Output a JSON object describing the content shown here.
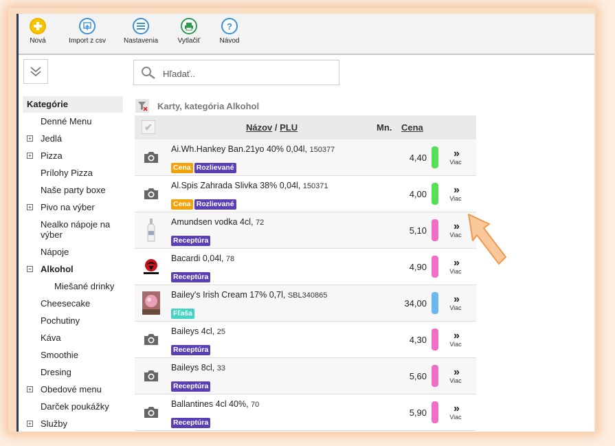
{
  "toolbar": {
    "items": [
      {
        "label": "Nová",
        "icon": "plus-icon"
      },
      {
        "label": "Import z csv",
        "icon": "import-icon"
      },
      {
        "label": "Nastavenia",
        "icon": "menu-icon"
      },
      {
        "label": "Vytlačiť",
        "icon": "printer-icon"
      },
      {
        "label": "Návod",
        "icon": "help-icon"
      }
    ]
  },
  "search": {
    "placeholder": "Hľadať.."
  },
  "sidebar": {
    "header": "Kategórie",
    "items": [
      {
        "label": "Denné Menu",
        "expand": ""
      },
      {
        "label": "Jedlá",
        "expand": "+"
      },
      {
        "label": "Pizza",
        "expand": "+"
      },
      {
        "label": "Prílohy Pizza",
        "expand": ""
      },
      {
        "label": "Naše party boxe",
        "expand": ""
      },
      {
        "label": "Pivo na výber",
        "expand": "+"
      },
      {
        "label": "Nealko nápoje na výber",
        "expand": ""
      },
      {
        "label": "Nápoje",
        "expand": ""
      },
      {
        "label": "Alkohol",
        "expand": "−"
      },
      {
        "label": "Miešané drinky",
        "expand": ""
      },
      {
        "label": "Cheesecake",
        "expand": ""
      },
      {
        "label": "Pochutiny",
        "expand": ""
      },
      {
        "label": "Káva",
        "expand": ""
      },
      {
        "label": "Smoothie",
        "expand": ""
      },
      {
        "label": "Dresing",
        "expand": ""
      },
      {
        "label": "Obedové menu",
        "expand": "+"
      },
      {
        "label": "Darček poukážky",
        "expand": ""
      },
      {
        "label": "Služby",
        "expand": "+"
      }
    ]
  },
  "main": {
    "title": "Karty, kategória Alkohol",
    "columns": {
      "name": "Názov",
      "slash": " / ",
      "plu": "PLU",
      "qty": "Mn.",
      "price": "Cena"
    },
    "more_label": "Viac",
    "more_chevron": "»",
    "products": [
      {
        "name": "Ai.Wh.Hankey Ban.21yo 40% 0,04l, ",
        "plu": "150377",
        "badges": [
          "Cena",
          "Rozlievané"
        ],
        "price": "4,40",
        "color": "#55e055",
        "thumb": "camera-icon"
      },
      {
        "name": "Al.Spis Zahrada Slivka 38% 0,04l, ",
        "plu": "150371",
        "badges": [
          "Cena",
          "Rozlievané"
        ],
        "price": "4,00",
        "color": "#55e055",
        "thumb": "camera-icon"
      },
      {
        "name": "Amundsen vodka 4cl, ",
        "plu": "72",
        "badges": [
          "Receptúra"
        ],
        "price": "5,10",
        "color": "#ee6fc5",
        "thumb": "vodka-bottle-image"
      },
      {
        "name": "Bacardi 0,04l, ",
        "plu": "78",
        "badges": [
          "Receptúra"
        ],
        "price": "4,90",
        "color": "#ee6fc5",
        "thumb": "bacardi-logo-image"
      },
      {
        "name": "Bailey's Irish Cream 17% 0,7l, ",
        "plu": "SBL340865",
        "badges": [
          "Fľaša"
        ],
        "price": "34,00",
        "color": "#6bb7f0",
        "thumb": "baileys-image"
      },
      {
        "name": "Baileys 4cl, ",
        "plu": "25",
        "badges": [
          "Receptúra"
        ],
        "price": "4,30",
        "color": "#ee6fc5",
        "thumb": "camera-icon"
      },
      {
        "name": "Baileys 8cl, ",
        "plu": "33",
        "badges": [
          "Receptúra"
        ],
        "price": "5,60",
        "color": "#ee6fc5",
        "thumb": "camera-icon"
      },
      {
        "name": "Ballantines 4cl 40%, ",
        "plu": "70",
        "badges": [
          "Receptúra"
        ],
        "price": "5,90",
        "color": "#ee6fc5",
        "thumb": "camera-icon"
      }
    ]
  },
  "badge_colors": {
    "Cena": "#f5a20a",
    "Rozlievané": "#5b3fb5",
    "Receptúra": "#5b3fb5",
    "Fľaša": "#45d3c6"
  }
}
